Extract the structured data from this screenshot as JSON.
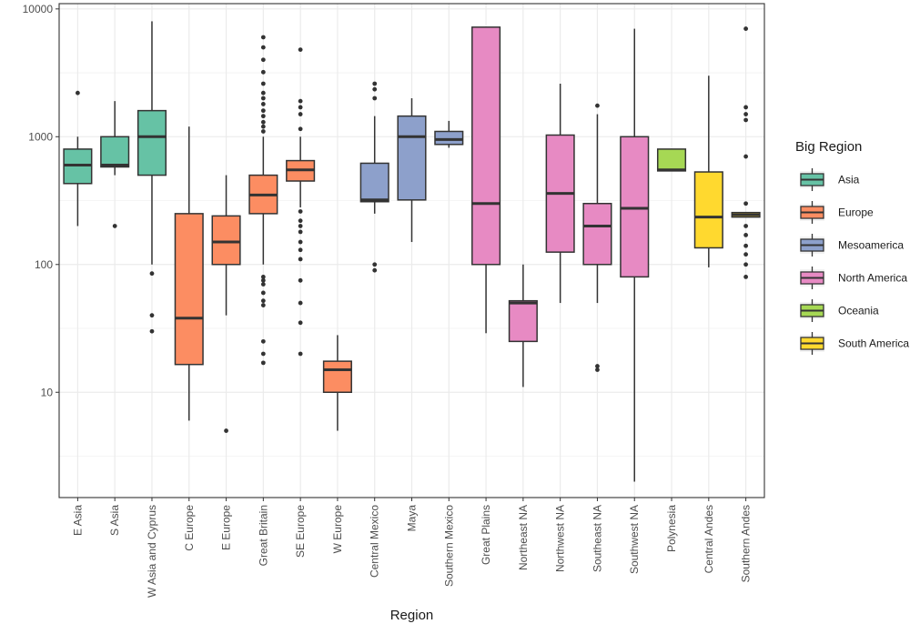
{
  "chart_data": {
    "type": "boxplot",
    "xlabel": "Region",
    "ylabel": "",
    "y_scale": "log10",
    "ylim": [
      1.5,
      11000
    ],
    "y_ticks": [
      10,
      100,
      1000,
      10000
    ],
    "y_tick_labels": [
      "10",
      "100",
      "1000",
      "10000"
    ],
    "legend_title": "Big Region",
    "legend_placement": "right",
    "groups": [
      {
        "name": "Asia",
        "color": "#66c2a5"
      },
      {
        "name": "Europe",
        "color": "#fc8d62"
      },
      {
        "name": "Mesoamerica",
        "color": "#8da0cb"
      },
      {
        "name": "North America",
        "color": "#e78ac3"
      },
      {
        "name": "Oceania",
        "color": "#a6d854"
      },
      {
        "name": "South America",
        "color": "#ffd92f"
      }
    ],
    "categories": [
      "E Asia",
      "S Asia",
      "W Asia and Cyprus",
      "C Europe",
      "E Europe",
      "Great Britain",
      "SE Europe",
      "W Europe",
      "Central Mexico",
      "Maya",
      "Southern Mexico",
      "Great Plains",
      "Northeast NA",
      "Northwest NA",
      "Southeast NA",
      "Southwest NA",
      "Polynesia",
      "Central Andes",
      "Southern Andes"
    ],
    "boxes": [
      {
        "region": "E Asia",
        "group": "Asia",
        "lower": 200,
        "q1": 430,
        "median": 600,
        "q3": 800,
        "upper": 1000,
        "outliers": [
          2200
        ]
      },
      {
        "region": "S Asia",
        "group": "Asia",
        "lower": 500,
        "q1": 580,
        "median": 600,
        "q3": 1000,
        "upper": 1900,
        "outliers": [
          200
        ]
      },
      {
        "region": "W Asia and Cyprus",
        "group": "Asia",
        "lower": 100,
        "q1": 500,
        "median": 1000,
        "q3": 1600,
        "upper": 8000,
        "outliers": [
          85,
          40,
          30
        ]
      },
      {
        "region": "C Europe",
        "group": "Europe",
        "lower": 6,
        "q1": 16.5,
        "median": 38,
        "q3": 250,
        "upper": 1200,
        "outliers": []
      },
      {
        "region": "E Europe",
        "group": "Europe",
        "lower": 40,
        "q1": 100,
        "median": 150,
        "q3": 240,
        "upper": 500,
        "outliers": [
          5
        ]
      },
      {
        "region": "Great Britain",
        "group": "Europe",
        "lower": 100,
        "q1": 250,
        "median": 350,
        "q3": 500,
        "upper": 1000,
        "outliers": [
          6000,
          5000,
          4000,
          3200,
          2600,
          2200,
          2000,
          1800,
          1600,
          1450,
          1300,
          1200,
          1100,
          80,
          75,
          70,
          60,
          52,
          48,
          25,
          20,
          17
        ]
      },
      {
        "region": "SE Europe",
        "group": "Europe",
        "lower": 280,
        "q1": 450,
        "median": 550,
        "q3": 650,
        "upper": 1000,
        "outliers": [
          4800,
          1900,
          1700,
          1500,
          1150,
          260,
          220,
          200,
          180,
          150,
          130,
          110,
          75,
          50,
          35,
          20
        ]
      },
      {
        "region": "W Europe",
        "group": "Europe",
        "lower": 5,
        "q1": 10,
        "median": 15,
        "q3": 17.5,
        "upper": 28,
        "outliers": []
      },
      {
        "region": "Central Mexico",
        "group": "Mesoamerica",
        "lower": 250,
        "q1": 310,
        "median": 320,
        "q3": 620,
        "upper": 1450,
        "outliers": [
          2600,
          2350,
          2000,
          100,
          90
        ]
      },
      {
        "region": "Maya",
        "group": "Mesoamerica",
        "lower": 150,
        "q1": 320,
        "median": 1000,
        "q3": 1450,
        "upper": 2000,
        "outliers": []
      },
      {
        "region": "Southern Mexico",
        "group": "Mesoamerica",
        "lower": 820,
        "q1": 870,
        "median": 950,
        "q3": 1100,
        "upper": 1330,
        "outliers": []
      },
      {
        "region": "Great Plains",
        "group": "North America",
        "lower": 29,
        "q1": 100,
        "median": 300,
        "q3": 7200,
        "upper": 7200,
        "outliers": []
      },
      {
        "region": "Northeast NA",
        "group": "North America",
        "lower": 11,
        "q1": 25,
        "median": 50,
        "q3": 52,
        "upper": 100,
        "outliers": []
      },
      {
        "region": "Northwest NA",
        "group": "North America",
        "lower": 50,
        "q1": 125,
        "median": 360,
        "q3": 1030,
        "upper": 2600,
        "outliers": []
      },
      {
        "region": "Southeast NA",
        "group": "North America",
        "lower": 50,
        "q1": 100,
        "median": 200,
        "q3": 300,
        "upper": 1500,
        "outliers": [
          1750,
          16,
          15
        ]
      },
      {
        "region": "Southwest NA",
        "group": "North America",
        "lower": 2,
        "q1": 80,
        "median": 275,
        "q3": 1000,
        "upper": 7000,
        "outliers": []
      },
      {
        "region": "Polynesia",
        "group": "Oceania",
        "lower": 540,
        "q1": 540,
        "median": 550,
        "q3": 800,
        "upper": 800,
        "outliers": []
      },
      {
        "region": "Central Andes",
        "group": "South America",
        "lower": 95,
        "q1": 135,
        "median": 235,
        "q3": 530,
        "upper": 3000,
        "outliers": []
      },
      {
        "region": "Southern Andes",
        "group": "South America",
        "lower": 235,
        "q1": 235,
        "median": 245,
        "q3": 255,
        "upper": 255,
        "outliers": [
          7000,
          1700,
          1500,
          1350,
          700,
          300,
          200,
          170,
          140,
          120,
          100,
          80
        ]
      }
    ]
  }
}
